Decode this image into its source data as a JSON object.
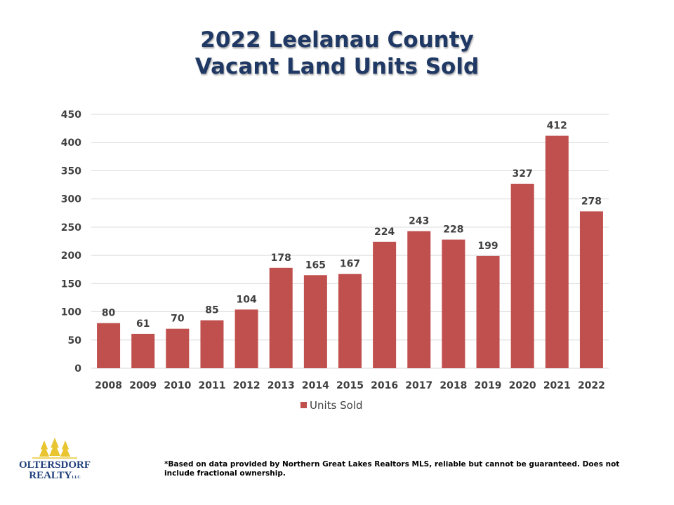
{
  "title_line1": "2022 Leelanau County",
  "title_line2": "Vacant Land Units Sold",
  "chart_data": {
    "type": "bar",
    "title": "2022 Leelanau County Vacant Land Units Sold",
    "categories": [
      "2008",
      "2009",
      "2010",
      "2011",
      "2012",
      "2013",
      "2014",
      "2015",
      "2016",
      "2017",
      "2018",
      "2019",
      "2020",
      "2021",
      "2022"
    ],
    "series": [
      {
        "name": "Units Sold",
        "values": [
          80,
          61,
          70,
          85,
          104,
          178,
          165,
          167,
          224,
          243,
          228,
          199,
          327,
          412,
          278
        ]
      }
    ],
    "yticks": [
      0,
      50,
      100,
      150,
      200,
      250,
      300,
      350,
      400,
      450
    ],
    "ylim": [
      0,
      450
    ],
    "grid": true,
    "data_labels": true,
    "legend_position": "bottom",
    "bar_color": "#C0504D"
  },
  "logo": {
    "text_line1": "OLTERSDORF",
    "text_line2": "REALTY",
    "text_suffix": "LLC",
    "text_color": "#1F3F7A",
    "tree_color": "#E8C531"
  },
  "footnote": "*Based on data provided by Northern Great Lakes Realtors MLS, reliable but cannot be guaranteed. Does not include fractional ownership."
}
